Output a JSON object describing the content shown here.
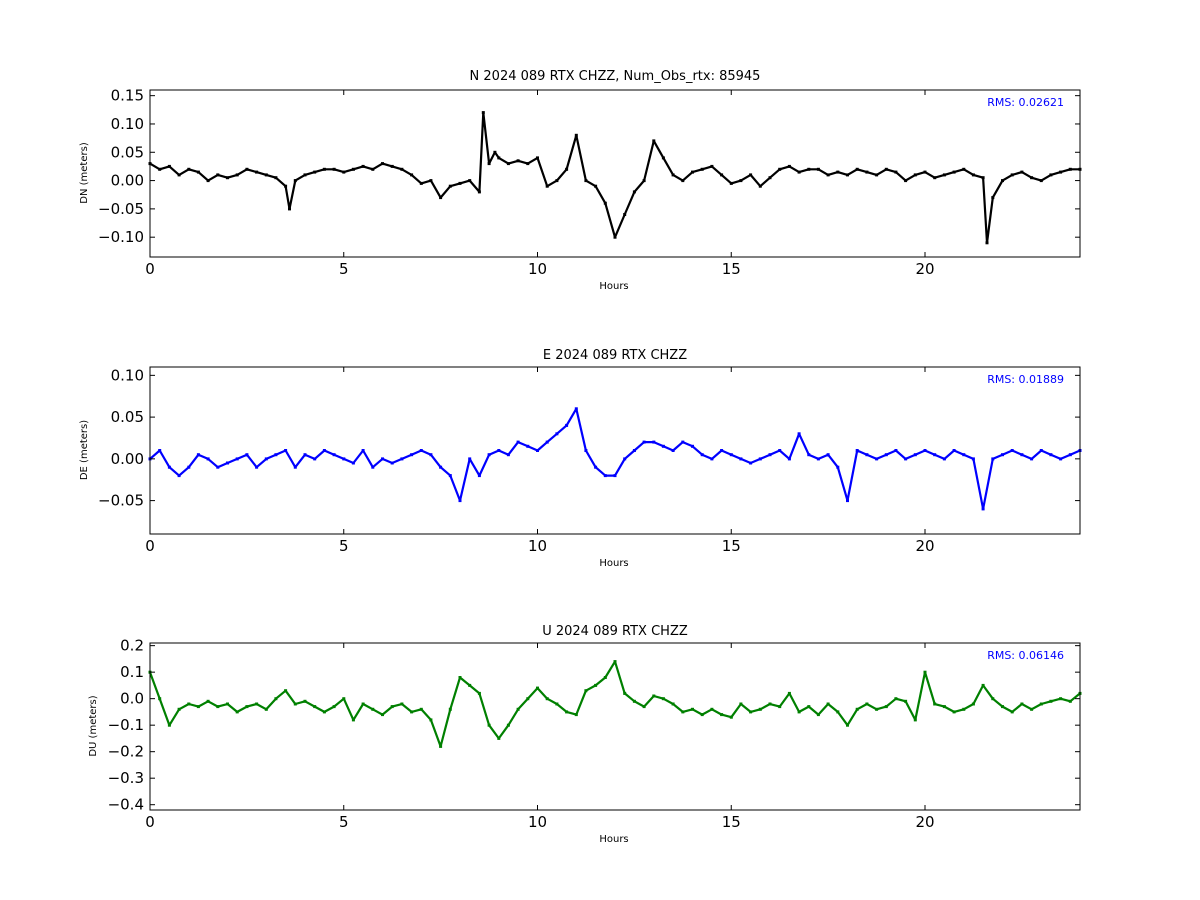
{
  "figure": {
    "panels": [
      {
        "title": "N 2024 089 RTX  CHZZ, Num_Obs_rtx: 85945",
        "ylabel": "DN (meters)",
        "xlabel": "Hours",
        "rms_label": "RMS:  0.02621",
        "rms_color": "#0000ff",
        "series_color": "#000000",
        "xlim": [
          0,
          24
        ],
        "ylim": [
          -0.135,
          0.16
        ],
        "xticks": [
          "0",
          "5",
          "10",
          "15",
          "20"
        ],
        "yticks": [
          "0.15",
          "0.10",
          "0.05",
          "0.00",
          "−0.05",
          "−0.10"
        ]
      },
      {
        "title": "E 2024 089 RTX  CHZZ",
        "ylabel": "DE (meters)",
        "xlabel": "Hours",
        "rms_label": "RMS:  0.01889",
        "rms_color": "#0000ff",
        "series_color": "#0000ff",
        "xlim": [
          0,
          24
        ],
        "ylim": [
          -0.09,
          0.11
        ],
        "xticks": [
          "0",
          "5",
          "10",
          "15",
          "20"
        ],
        "yticks": [
          "0.10",
          "0.05",
          "0.00",
          "−0.05"
        ]
      },
      {
        "title": "U 2024 089 RTX  CHZZ",
        "ylabel": "DU (meters)",
        "xlabel": "Hours",
        "rms_label": "RMS:  0.06146",
        "rms_color": "#0000ff",
        "series_color": "#008000",
        "xlim": [
          0,
          24
        ],
        "ylim": [
          -0.42,
          0.21
        ],
        "xticks": [
          "0",
          "5",
          "10",
          "15",
          "20"
        ],
        "yticks": [
          "0.2",
          "0.1",
          "0.0",
          "−0.1",
          "−0.2",
          "−0.3",
          "−0.4"
        ]
      }
    ]
  },
  "chart_data": [
    {
      "type": "scatter",
      "title": "N 2024 089 RTX  CHZZ, Num_Obs_rtx: 85945",
      "xlabel": "Hours",
      "ylabel": "DN (meters)",
      "xlim": [
        0,
        24
      ],
      "ylim": [
        -0.135,
        0.16
      ],
      "grid": false,
      "annotation": "RMS:  0.02621",
      "series": [
        {
          "color": "#000000",
          "x": [
            0,
            0.25,
            0.5,
            0.75,
            1,
            1.25,
            1.5,
            1.75,
            2,
            2.25,
            2.5,
            2.75,
            3,
            3.25,
            3.5,
            3.6,
            3.75,
            4,
            4.25,
            4.5,
            4.75,
            5,
            5.25,
            5.5,
            5.75,
            6,
            6.25,
            6.5,
            6.75,
            7,
            7.25,
            7.5,
            7.75,
            8,
            8.25,
            8.5,
            8.6,
            8.75,
            8.9,
            9,
            9.25,
            9.5,
            9.75,
            10,
            10.25,
            10.5,
            10.75,
            11,
            11.25,
            11.5,
            11.75,
            12,
            12.25,
            12.5,
            12.75,
            13,
            13.25,
            13.5,
            13.75,
            14,
            14.25,
            14.5,
            14.75,
            15,
            15.25,
            15.5,
            15.75,
            16,
            16.25,
            16.5,
            16.75,
            17,
            17.25,
            17.5,
            17.75,
            18,
            18.25,
            18.5,
            18.75,
            19,
            19.25,
            19.5,
            19.75,
            20,
            20.25,
            20.5,
            20.75,
            21,
            21.25,
            21.5,
            21.6,
            21.75,
            22,
            22.25,
            22.5,
            22.75,
            23,
            23.25,
            23.5,
            23.75,
            24
          ],
          "y": [
            0.03,
            0.02,
            0.025,
            0.01,
            0.02,
            0.015,
            0.0,
            0.01,
            0.005,
            0.01,
            0.02,
            0.015,
            0.01,
            0.005,
            -0.01,
            -0.05,
            0.0,
            0.01,
            0.015,
            0.02,
            0.02,
            0.015,
            0.02,
            0.025,
            0.02,
            0.03,
            0.025,
            0.02,
            0.01,
            -0.005,
            0.0,
            -0.03,
            -0.01,
            -0.005,
            0.0,
            -0.02,
            0.12,
            0.03,
            0.05,
            0.04,
            0.03,
            0.035,
            0.03,
            0.04,
            -0.01,
            0.0,
            0.02,
            0.08,
            0.0,
            -0.01,
            -0.04,
            -0.1,
            -0.06,
            -0.02,
            0.0,
            0.07,
            0.04,
            0.01,
            0.0,
            0.015,
            0.02,
            0.025,
            0.01,
            -0.005,
            0.0,
            0.01,
            -0.01,
            0.005,
            0.02,
            0.025,
            0.015,
            0.02,
            0.02,
            0.01,
            0.015,
            0.01,
            0.02,
            0.015,
            0.01,
            0.02,
            0.015,
            0.0,
            0.01,
            0.015,
            0.005,
            0.01,
            0.015,
            0.02,
            0.01,
            0.005,
            -0.11,
            -0.03,
            0.0,
            0.01,
            0.015,
            0.005,
            0.0,
            0.01,
            0.015,
            0.02,
            0.02
          ]
        }
      ]
    },
    {
      "type": "scatter",
      "title": "E 2024 089 RTX  CHZZ",
      "xlabel": "Hours",
      "ylabel": "DE (meters)",
      "xlim": [
        0,
        24
      ],
      "ylim": [
        -0.09,
        0.11
      ],
      "grid": false,
      "annotation": "RMS:  0.01889",
      "series": [
        {
          "color": "#0000ff",
          "x": [
            0,
            0.25,
            0.5,
            0.75,
            1,
            1.25,
            1.5,
            1.75,
            2,
            2.25,
            2.5,
            2.75,
            3,
            3.25,
            3.5,
            3.75,
            4,
            4.25,
            4.5,
            4.75,
            5,
            5.25,
            5.5,
            5.75,
            6,
            6.25,
            6.5,
            6.75,
            7,
            7.25,
            7.5,
            7.75,
            8,
            8.25,
            8.5,
            8.75,
            9,
            9.25,
            9.5,
            9.75,
            10,
            10.25,
            10.5,
            10.75,
            11,
            11.25,
            11.5,
            11.75,
            12,
            12.25,
            12.5,
            12.75,
            13,
            13.25,
            13.5,
            13.75,
            14,
            14.25,
            14.5,
            14.75,
            15,
            15.25,
            15.5,
            15.75,
            16,
            16.25,
            16.5,
            16.75,
            17,
            17.25,
            17.5,
            17.75,
            18,
            18.25,
            18.5,
            18.75,
            19,
            19.25,
            19.5,
            19.75,
            20,
            20.25,
            20.5,
            20.75,
            21,
            21.25,
            21.5,
            21.75,
            22,
            22.25,
            22.5,
            22.75,
            23,
            23.25,
            23.5,
            23.75,
            24
          ],
          "y": [
            0.0,
            0.01,
            -0.01,
            -0.02,
            -0.01,
            0.005,
            0.0,
            -0.01,
            -0.005,
            0.0,
            0.005,
            -0.01,
            0.0,
            0.005,
            0.01,
            -0.01,
            0.005,
            0.0,
            0.01,
            0.005,
            0.0,
            -0.005,
            0.01,
            -0.01,
            0.0,
            -0.005,
            0.0,
            0.005,
            0.01,
            0.005,
            -0.01,
            -0.02,
            -0.05,
            0.0,
            -0.02,
            0.005,
            0.01,
            0.005,
            0.02,
            0.015,
            0.01,
            0.02,
            0.03,
            0.04,
            0.06,
            0.01,
            -0.01,
            -0.02,
            -0.02,
            0.0,
            0.01,
            0.02,
            0.02,
            0.015,
            0.01,
            0.02,
            0.015,
            0.005,
            0.0,
            0.01,
            0.005,
            0.0,
            -0.005,
            0.0,
            0.005,
            0.01,
            0.0,
            0.03,
            0.005,
            0.0,
            0.005,
            -0.01,
            -0.05,
            0.01,
            0.005,
            0.0,
            0.005,
            0.01,
            0.0,
            0.005,
            0.01,
            0.005,
            0.0,
            0.01,
            0.005,
            0.0,
            -0.06,
            0.0,
            0.005,
            0.01,
            0.005,
            0.0,
            0.01,
            0.005,
            0.0,
            0.005,
            0.01
          ]
        }
      ]
    },
    {
      "type": "scatter",
      "title": "U 2024 089 RTX  CHZZ",
      "xlabel": "Hours",
      "ylabel": "DU (meters)",
      "xlim": [
        0,
        24
      ],
      "ylim": [
        -0.42,
        0.21
      ],
      "grid": false,
      "annotation": "RMS:  0.06146",
      "series": [
        {
          "color": "#008000",
          "x": [
            0,
            0.25,
            0.5,
            0.75,
            1,
            1.25,
            1.5,
            1.75,
            2,
            2.25,
            2.5,
            2.75,
            3,
            3.25,
            3.5,
            3.75,
            4,
            4.25,
            4.5,
            4.75,
            5,
            5.25,
            5.5,
            5.75,
            6,
            6.25,
            6.5,
            6.75,
            7,
            7.25,
            7.5,
            7.75,
            8,
            8.25,
            8.5,
            8.75,
            9,
            9.25,
            9.5,
            9.75,
            10,
            10.25,
            10.5,
            10.75,
            11,
            11.25,
            11.5,
            11.75,
            12,
            12.25,
            12.5,
            12.75,
            13,
            13.25,
            13.5,
            13.75,
            14,
            14.25,
            14.5,
            14.75,
            15,
            15.25,
            15.5,
            15.75,
            16,
            16.25,
            16.5,
            16.75,
            17,
            17.25,
            17.5,
            17.75,
            18,
            18.25,
            18.5,
            18.75,
            19,
            19.25,
            19.5,
            19.75,
            20,
            20.25,
            20.5,
            20.75,
            21,
            21.25,
            21.5,
            21.75,
            22,
            22.25,
            22.5,
            22.75,
            23,
            23.25,
            23.5,
            23.75,
            24
          ],
          "y": [
            0.1,
            0.0,
            -0.1,
            -0.04,
            -0.02,
            -0.03,
            -0.01,
            -0.03,
            -0.02,
            -0.05,
            -0.03,
            -0.02,
            -0.04,
            0.0,
            0.03,
            -0.02,
            -0.01,
            -0.03,
            -0.05,
            -0.03,
            0.0,
            -0.08,
            -0.02,
            -0.04,
            -0.06,
            -0.03,
            -0.02,
            -0.05,
            -0.04,
            -0.08,
            -0.18,
            -0.04,
            0.08,
            0.05,
            0.02,
            -0.1,
            -0.15,
            -0.1,
            -0.04,
            0.0,
            0.04,
            0.0,
            -0.02,
            -0.05,
            -0.06,
            0.03,
            0.05,
            0.08,
            0.14,
            0.02,
            -0.01,
            -0.03,
            0.01,
            0.0,
            -0.02,
            -0.05,
            -0.04,
            -0.06,
            -0.04,
            -0.06,
            -0.07,
            -0.02,
            -0.05,
            -0.04,
            -0.02,
            -0.03,
            0.02,
            -0.05,
            -0.03,
            -0.06,
            -0.02,
            -0.05,
            -0.1,
            -0.04,
            -0.02,
            -0.04,
            -0.03,
            0.0,
            -0.01,
            -0.08,
            0.1,
            -0.02,
            -0.03,
            -0.05,
            -0.04,
            -0.02,
            0.05,
            0.0,
            -0.03,
            -0.05,
            -0.02,
            -0.04,
            -0.02,
            -0.01,
            0.0,
            -0.01,
            0.02
          ]
        }
      ]
    }
  ]
}
